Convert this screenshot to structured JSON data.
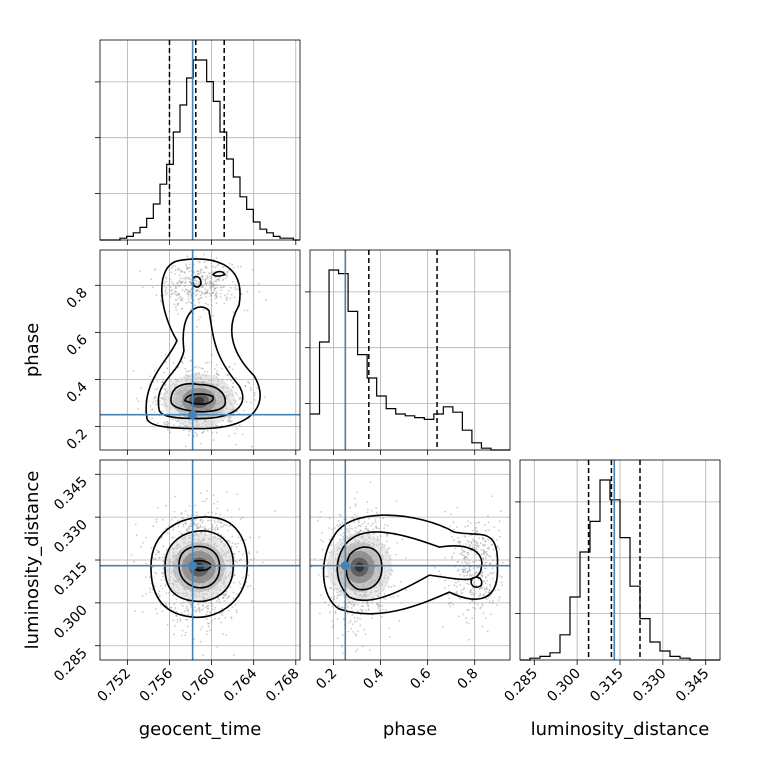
{
  "chart_data": {
    "type": "corner",
    "parameters": [
      "geocent_time",
      "phase",
      "luminosity_distance"
    ],
    "axis_labels": {
      "geocent_time": "geocent_time",
      "phase": "phase",
      "luminosity_distance": "luminosity_distance"
    },
    "ranges": {
      "geocent_time": [
        0.7494,
        0.7684
      ],
      "phase": [
        0.1,
        0.95
      ],
      "luminosity_distance": [
        0.28,
        0.35
      ]
    },
    "ticks": {
      "geocent_time": {
        "values": [
          0.752,
          0.756,
          0.76,
          0.764,
          0.768
        ],
        "labels": [
          "0.752",
          "0.756",
          "0.760",
          "0.764",
          "0.768"
        ]
      },
      "phase": {
        "values": [
          0.2,
          0.4,
          0.6,
          0.8
        ],
        "labels": [
          "0.2",
          "0.4",
          "0.6",
          "0.8"
        ]
      },
      "luminosity_distance": {
        "values": [
          0.285,
          0.3,
          0.315,
          0.33,
          0.345
        ],
        "labels": [
          "0.285",
          "0.300",
          "0.315",
          "0.330",
          "0.345"
        ]
      }
    },
    "truths": {
      "geocent_time": 0.7582,
      "phase": 0.25,
      "luminosity_distance": 0.313
    },
    "quantiles": {
      "geocent_time": [
        0.756,
        0.7585,
        0.7612
      ],
      "phase": [
        0.25,
        0.35,
        0.64
      ],
      "luminosity_distance": [
        0.304,
        0.312,
        0.322
      ]
    },
    "histograms": {
      "geocent_time": [
        0,
        0,
        0,
        0.01,
        0.02,
        0.04,
        0.07,
        0.12,
        0.2,
        0.31,
        0.42,
        0.6,
        0.75,
        0.9,
        1.0,
        1.0,
        0.88,
        0.77,
        0.6,
        0.45,
        0.35,
        0.24,
        0.17,
        0.1,
        0.06,
        0.04,
        0.02,
        0.01,
        0.01,
        0
      ],
      "phase": [
        0.2,
        0.6,
        1.0,
        0.98,
        0.77,
        0.53,
        0.4,
        0.3,
        0.23,
        0.2,
        0.19,
        0.18,
        0.17,
        0.2,
        0.24,
        0.21,
        0.11,
        0.04,
        0.01,
        0,
        0
      ],
      "luminosity_distance": [
        0,
        0.01,
        0.02,
        0.04,
        0.14,
        0.35,
        0.6,
        0.77,
        1.0,
        0.89,
        0.68,
        0.41,
        0.23,
        0.1,
        0.05,
        0.02,
        0.01,
        0,
        0,
        0
      ]
    },
    "grid": true,
    "truth_color": "#4682b4",
    "contour_color": "#000000",
    "point_color": "#8c8c8c"
  }
}
